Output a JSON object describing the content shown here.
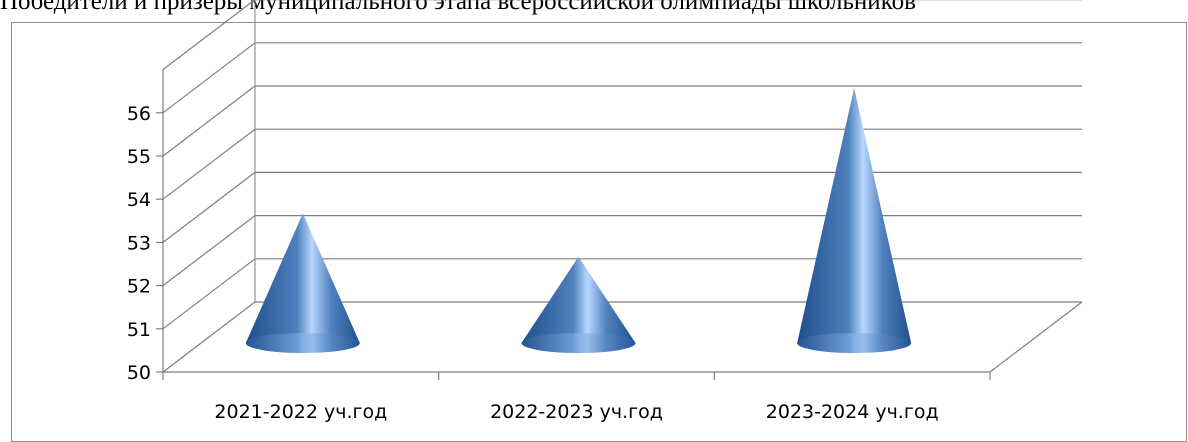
{
  "title": "Победители и призеры муниципального этапа всероссийской олимпиады школьников",
  "chart_data": {
    "type": "bar",
    "shape": "cone-3d",
    "categories": [
      "2021-2022 уч.год",
      "2022-2023 уч.год",
      "2023-2024 уч.год"
    ],
    "values": [
      53,
      52,
      55.9
    ],
    "ylim": [
      50,
      56
    ],
    "yticks": [
      "50",
      "51",
      "52",
      "53",
      "54",
      "55",
      "56"
    ],
    "grid": true,
    "legend": "none",
    "colors": {
      "cone_dark": "#1f4e8c",
      "cone_mid": "#4f81bd",
      "cone_light": "#b7d6ff",
      "grid": "#7f7f7f"
    }
  }
}
